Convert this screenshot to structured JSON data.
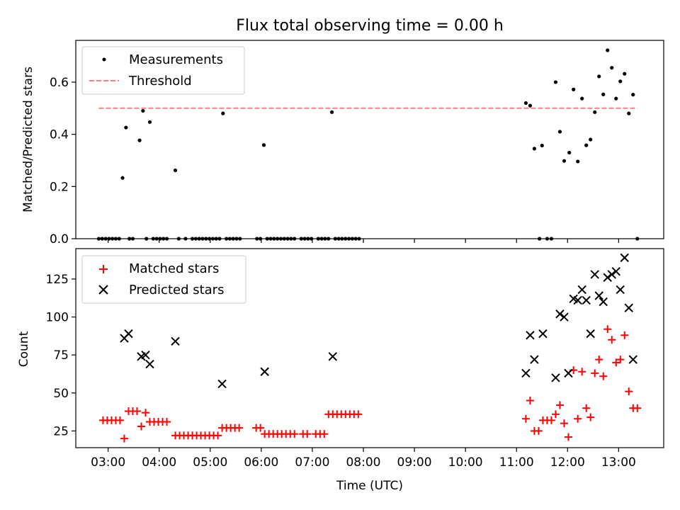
{
  "figure": {
    "title": "Flux total observing time = 0.00 h",
    "xlabel": "Time (UTC)"
  },
  "chart_data": [
    {
      "type": "scatter",
      "panel": "top",
      "title": "Flux total observing time = 0.00 h",
      "ylabel": "Matched/Predicted stars",
      "xlim": [
        "02:22",
        "13:53"
      ],
      "ylim": [
        0,
        0.76
      ],
      "yticks": [
        0.0,
        0.2,
        0.4,
        0.6
      ],
      "ytick_labels": [
        "0.0",
        "0.2",
        "0.4",
        "0.6"
      ],
      "legend_position": "upper-left",
      "grid": false,
      "series": [
        {
          "name": "Measurements",
          "kind": "scatter",
          "color": "#000000",
          "marker": "dot",
          "points": [
            [
              "02:49",
              0
            ],
            [
              "02:53",
              0
            ],
            [
              "02:57",
              0
            ],
            [
              "03:01",
              0
            ],
            [
              "03:05",
              0
            ],
            [
              "03:09",
              0
            ],
            [
              "03:13",
              0
            ],
            [
              "03:17",
              0.233
            ],
            [
              "03:21",
              0.426
            ],
            [
              "03:25",
              0
            ],
            [
              "03:29",
              0
            ],
            [
              "03:37",
              0.377
            ],
            [
              "03:41",
              0.49
            ],
            [
              "03:45",
              0
            ],
            [
              "03:49",
              0.447
            ],
            [
              "03:53",
              0
            ],
            [
              "03:57",
              0
            ],
            [
              "04:01",
              0
            ],
            [
              "04:05",
              0
            ],
            [
              "04:09",
              0
            ],
            [
              "04:19",
              0.262
            ],
            [
              "04:23",
              0
            ],
            [
              "04:31",
              0
            ],
            [
              "04:39",
              0
            ],
            [
              "04:43",
              0
            ],
            [
              "04:47",
              0
            ],
            [
              "04:51",
              0
            ],
            [
              "04:55",
              0
            ],
            [
              "04:59",
              0
            ],
            [
              "05:03",
              0
            ],
            [
              "05:07",
              0
            ],
            [
              "05:11",
              0
            ],
            [
              "05:15",
              0.48
            ],
            [
              "05:19",
              0
            ],
            [
              "05:23",
              0
            ],
            [
              "05:27",
              0
            ],
            [
              "05:31",
              0
            ],
            [
              "05:35",
              0
            ],
            [
              "05:55",
              0
            ],
            [
              "05:59",
              0
            ],
            [
              "06:03",
              0.359
            ],
            [
              "06:07",
              0
            ],
            [
              "06:11",
              0
            ],
            [
              "06:15",
              0
            ],
            [
              "06:19",
              0
            ],
            [
              "06:23",
              0
            ],
            [
              "06:27",
              0
            ],
            [
              "06:31",
              0
            ],
            [
              "06:35",
              0
            ],
            [
              "06:39",
              0
            ],
            [
              "06:47",
              0
            ],
            [
              "06:51",
              0
            ],
            [
              "06:55",
              0
            ],
            [
              "06:59",
              0
            ],
            [
              "07:07",
              0
            ],
            [
              "07:11",
              0
            ],
            [
              "07:15",
              0
            ],
            [
              "07:19",
              0
            ],
            [
              "07:23",
              0.485
            ],
            [
              "07:27",
              0
            ],
            [
              "07:31",
              0
            ],
            [
              "07:35",
              0
            ],
            [
              "07:39",
              0
            ],
            [
              "07:43",
              0
            ],
            [
              "07:47",
              0
            ],
            [
              "07:51",
              0
            ],
            [
              "07:55",
              0
            ],
            [
              "11:11",
              0.52
            ],
            [
              "11:16",
              0.51
            ],
            [
              "11:21",
              0.345
            ],
            [
              "11:27",
              0
            ],
            [
              "11:30",
              0.357
            ],
            [
              "11:36",
              0
            ],
            [
              "11:41",
              0
            ],
            [
              "11:46",
              0.6
            ],
            [
              "11:51",
              0.41
            ],
            [
              "11:56",
              0.298
            ],
            [
              "12:02",
              0.33
            ],
            [
              "12:07",
              0.572
            ],
            [
              "12:12",
              0.296
            ],
            [
              "12:17",
              0.537
            ],
            [
              "12:22",
              0.358
            ],
            [
              "12:27",
              0.38
            ],
            [
              "12:32",
              0.485
            ],
            [
              "12:37",
              0.622
            ],
            [
              "12:42",
              0.553
            ],
            [
              "12:47",
              0.722
            ],
            [
              "12:52",
              0.655
            ],
            [
              "12:57",
              0.537
            ],
            [
              "13:02",
              0.603
            ],
            [
              "13:07",
              0.632
            ],
            [
              "13:12",
              0.48
            ],
            [
              "13:17",
              0.552
            ],
            [
              "13:22",
              0
            ]
          ]
        },
        {
          "name": "Threshold",
          "kind": "line",
          "style": "dashed",
          "color": "#ff7f7f",
          "x": [
            "02:49",
            "13:22"
          ],
          "y": [
            0.5,
            0.5
          ]
        }
      ]
    },
    {
      "type": "scatter",
      "panel": "bottom",
      "xlabel": "Time (UTC)",
      "ylabel": "Count",
      "xlim": [
        "02:22",
        "13:53"
      ],
      "ylim": [
        14,
        145
      ],
      "yticks": [
        25,
        50,
        75,
        100,
        125
      ],
      "ytick_labels": [
        "25",
        "50",
        "75",
        "100",
        "125"
      ],
      "xticks": [
        "03:00",
        "04:00",
        "05:00",
        "06:00",
        "07:00",
        "08:00",
        "09:00",
        "10:00",
        "11:00",
        "12:00",
        "13:00"
      ],
      "legend_position": "upper-left",
      "grid": false,
      "series": [
        {
          "name": "Matched stars",
          "kind": "scatter",
          "color": "#ff0000",
          "marker": "plus",
          "points": [
            [
              "02:54",
              32
            ],
            [
              "02:59",
              32
            ],
            [
              "03:04",
              32
            ],
            [
              "03:09",
              32
            ],
            [
              "03:14",
              32
            ],
            [
              "03:19",
              20
            ],
            [
              "03:24",
              38
            ],
            [
              "03:29",
              38
            ],
            [
              "03:34",
              38
            ],
            [
              "03:39",
              28
            ],
            [
              "03:44",
              37
            ],
            [
              "03:49",
              31
            ],
            [
              "03:54",
              31
            ],
            [
              "03:59",
              31
            ],
            [
              "04:04",
              31
            ],
            [
              "04:09",
              31
            ],
            [
              "04:19",
              22
            ],
            [
              "04:24",
              22
            ],
            [
              "04:29",
              22
            ],
            [
              "04:34",
              22
            ],
            [
              "04:39",
              22
            ],
            [
              "04:44",
              22
            ],
            [
              "04:49",
              22
            ],
            [
              "04:54",
              22
            ],
            [
              "04:59",
              22
            ],
            [
              "05:04",
              22
            ],
            [
              "05:09",
              22
            ],
            [
              "05:14",
              27
            ],
            [
              "05:19",
              27
            ],
            [
              "05:24",
              27
            ],
            [
              "05:29",
              27
            ],
            [
              "05:34",
              27
            ],
            [
              "05:54",
              27
            ],
            [
              "05:59",
              27
            ],
            [
              "06:04",
              23
            ],
            [
              "06:09",
              23
            ],
            [
              "06:14",
              23
            ],
            [
              "06:19",
              23
            ],
            [
              "06:24",
              23
            ],
            [
              "06:29",
              23
            ],
            [
              "06:34",
              23
            ],
            [
              "06:39",
              23
            ],
            [
              "06:49",
              23
            ],
            [
              "06:54",
              23
            ],
            [
              "07:04",
              23
            ],
            [
              "07:09",
              23
            ],
            [
              "07:14",
              23
            ],
            [
              "07:19",
              36
            ],
            [
              "07:24",
              36
            ],
            [
              "07:29",
              36
            ],
            [
              "07:34",
              36
            ],
            [
              "07:39",
              36
            ],
            [
              "07:44",
              36
            ],
            [
              "07:49",
              36
            ],
            [
              "07:54",
              36
            ],
            [
              "11:11",
              33
            ],
            [
              "11:16",
              45
            ],
            [
              "11:21",
              25
            ],
            [
              "11:26",
              25
            ],
            [
              "11:31",
              32
            ],
            [
              "11:36",
              32
            ],
            [
              "11:41",
              32
            ],
            [
              "11:46",
              36
            ],
            [
              "11:51",
              42
            ],
            [
              "11:56",
              30
            ],
            [
              "12:01",
              21
            ],
            [
              "12:07",
              65
            ],
            [
              "12:12",
              33
            ],
            [
              "12:17",
              64
            ],
            [
              "12:22",
              40
            ],
            [
              "12:27",
              34
            ],
            [
              "12:32",
              63
            ],
            [
              "12:37",
              72
            ],
            [
              "12:42",
              61
            ],
            [
              "12:47",
              92
            ],
            [
              "12:52",
              85
            ],
            [
              "12:57",
              70
            ],
            [
              "13:02",
              72
            ],
            [
              "13:07",
              88
            ],
            [
              "13:12",
              51
            ],
            [
              "13:17",
              40
            ],
            [
              "13:22",
              40
            ]
          ]
        },
        {
          "name": "Predicted stars",
          "kind": "scatter",
          "color": "#000000",
          "marker": "x",
          "points": [
            [
              "03:19",
              86
            ],
            [
              "03:24",
              89
            ],
            [
              "03:39",
              74
            ],
            [
              "03:44",
              75
            ],
            [
              "03:49",
              69
            ],
            [
              "04:19",
              84
            ],
            [
              "05:14",
              56
            ],
            [
              "06:04",
              64
            ],
            [
              "07:24",
              74
            ],
            [
              "11:11",
              63
            ],
            [
              "11:16",
              88
            ],
            [
              "11:21",
              72
            ],
            [
              "11:31",
              89
            ],
            [
              "11:46",
              60
            ],
            [
              "11:51",
              102
            ],
            [
              "11:56",
              100
            ],
            [
              "12:01",
              63
            ],
            [
              "12:07",
              112
            ],
            [
              "12:12",
              111
            ],
            [
              "12:17",
              118
            ],
            [
              "12:22",
              111
            ],
            [
              "12:27",
              89
            ],
            [
              "12:32",
              128
            ],
            [
              "12:37",
              114
            ],
            [
              "12:42",
              110
            ],
            [
              "12:47",
              126
            ],
            [
              "12:52",
              128
            ],
            [
              "12:57",
              130
            ],
            [
              "13:02",
              118
            ],
            [
              "13:07",
              139
            ],
            [
              "13:12",
              106
            ],
            [
              "13:17",
              72
            ]
          ]
        }
      ]
    }
  ]
}
